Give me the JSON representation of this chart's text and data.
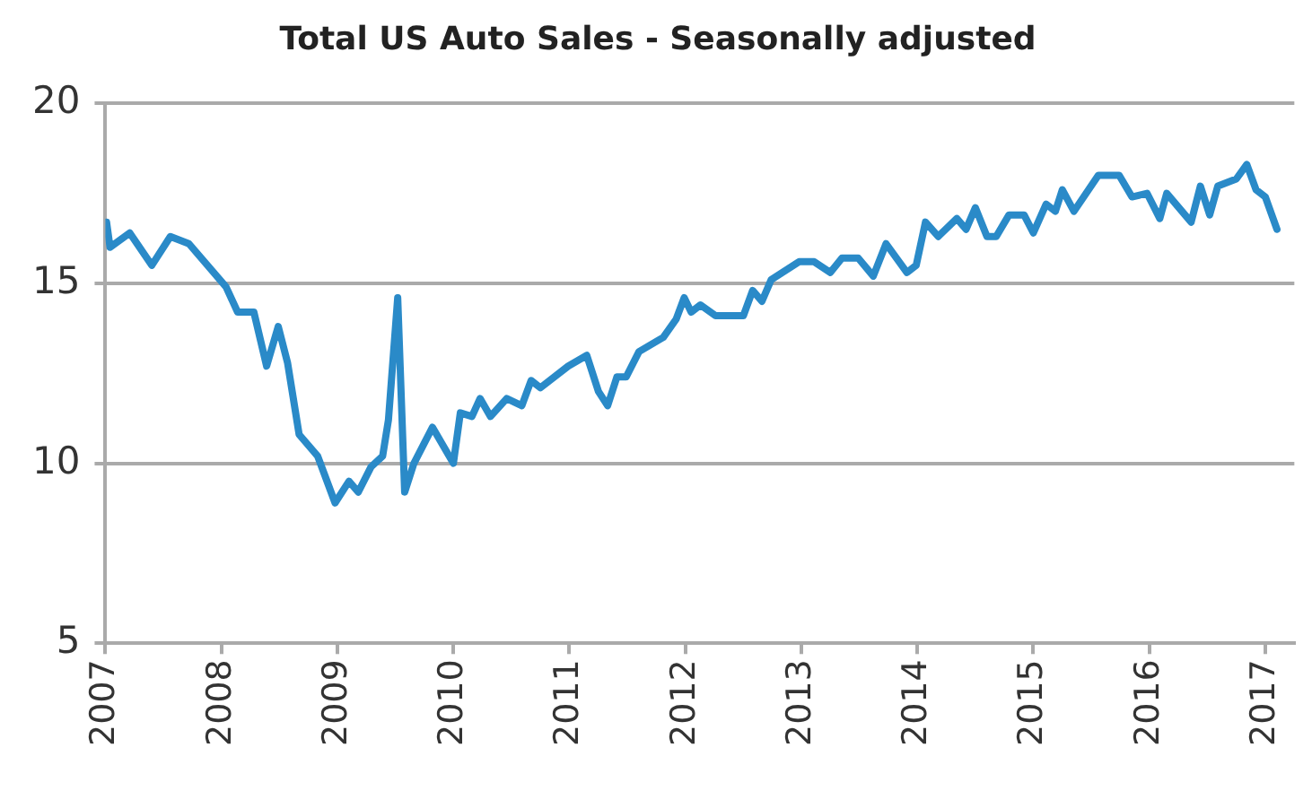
{
  "chart_data": {
    "type": "line",
    "title": "Total US Auto Sales - Seasonally adjusted",
    "x": [
      2007.01,
      2007.04,
      2007.21,
      2007.4,
      2007.56,
      2007.72,
      2008.04,
      2008.14,
      2008.28,
      2008.39,
      2008.49,
      2008.57,
      2008.67,
      2008.83,
      2008.98,
      2009.1,
      2009.18,
      2009.29,
      2009.39,
      2009.44,
      2009.52,
      2009.58,
      2009.66,
      2009.82,
      2010.0,
      2010.06,
      2010.16,
      2010.23,
      2010.32,
      2010.46,
      2010.59,
      2010.67,
      2010.75,
      2010.99,
      2011.15,
      2011.25,
      2011.33,
      2011.41,
      2011.49,
      2011.6,
      2011.81,
      2011.92,
      2011.99,
      2012.05,
      2012.13,
      2012.26,
      2012.5,
      2012.58,
      2012.66,
      2012.74,
      2012.98,
      2013.11,
      2013.25,
      2013.35,
      2013.49,
      2013.62,
      2013.73,
      2013.91,
      2013.99,
      2014.07,
      2014.18,
      2014.34,
      2014.42,
      2014.5,
      2014.6,
      2014.68,
      2014.79,
      2014.92,
      2015.0,
      2015.11,
      2015.19,
      2015.25,
      2015.35,
      2015.56,
      2015.74,
      2015.85,
      2015.98,
      2016.09,
      2016.15,
      2016.36,
      2016.44,
      2016.52,
      2016.59,
      2016.75,
      2016.84,
      2016.92,
      2017.0,
      2017.1
    ],
    "series": [
      {
        "color": "#2a8ac8",
        "values": [
          16.7,
          16.0,
          16.4,
          15.5,
          16.3,
          16.1,
          14.9,
          14.2,
          14.2,
          12.7,
          13.8,
          12.8,
          10.8,
          10.2,
          8.9,
          9.5,
          9.2,
          9.9,
          10.2,
          11.2,
          14.6,
          9.2,
          10.0,
          11.0,
          10.0,
          11.4,
          11.3,
          11.8,
          11.3,
          11.8,
          11.6,
          12.3,
          12.1,
          12.7,
          13.0,
          12.0,
          11.6,
          12.4,
          12.4,
          13.1,
          13.5,
          14.0,
          14.6,
          14.2,
          14.4,
          14.1,
          14.1,
          14.8,
          14.5,
          15.1,
          15.6,
          15.6,
          15.3,
          15.7,
          15.7,
          15.2,
          16.1,
          15.3,
          15.5,
          16.7,
          16.3,
          16.8,
          16.5,
          17.1,
          16.3,
          16.3,
          16.9,
          16.9,
          16.4,
          17.2,
          17.0,
          17.6,
          17.0,
          18.0,
          18.0,
          17.4,
          17.5,
          16.8,
          17.5,
          16.7,
          17.7,
          16.9,
          17.7,
          17.9,
          18.3,
          17.6,
          17.4,
          16.5
        ]
      }
    ],
    "xlim": [
      2007,
      2017.25
    ],
    "xticks": [
      2007,
      2008,
      2009,
      2010,
      2011,
      2012,
      2013,
      2014,
      2015,
      2016,
      2017
    ],
    "ylim": [
      5,
      20
    ],
    "yticks": [
      5,
      10,
      15,
      20
    ],
    "grid": "y",
    "legend": false,
    "marker": "none",
    "line_style": "solid"
  }
}
